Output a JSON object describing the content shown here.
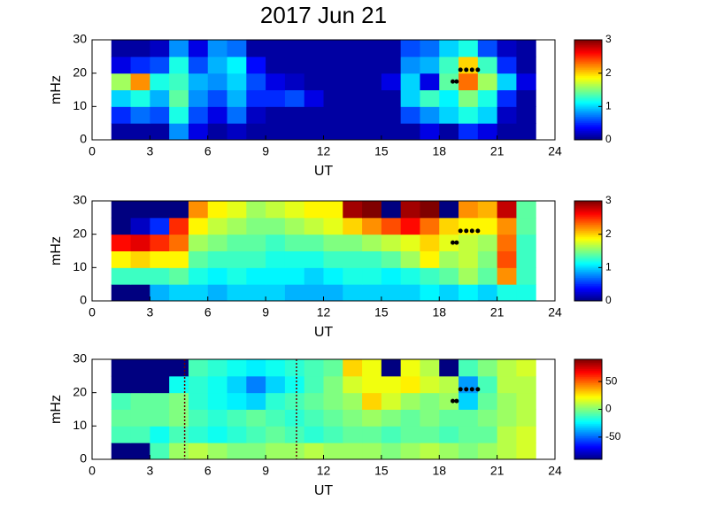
{
  "chart_data": [
    {
      "type": "heatmap",
      "title": "2017 Jun 21",
      "xlabel": "UT",
      "ylabel": "mHz",
      "x": [
        1,
        2,
        3,
        4,
        5,
        6,
        7,
        8,
        9,
        10,
        11,
        12,
        13,
        14,
        15,
        16,
        17,
        18,
        19,
        20,
        21,
        22,
        23
      ],
      "y": [
        0,
        5,
        10,
        15,
        20,
        25,
        30
      ],
      "z": [
        [
          0.1,
          0.1,
          0.1,
          0.8,
          0.3,
          0.1,
          0.2,
          0.1,
          0.1,
          0.1,
          0.1,
          0.1,
          0.1,
          0.1,
          0.1,
          0.1,
          0.3,
          0.1,
          0.5,
          0.3,
          0.1,
          0.1
        ],
        [
          0.5,
          0.7,
          0.6,
          1.2,
          0.6,
          0.3,
          0.7,
          0.2,
          0.1,
          0.1,
          0.1,
          0.1,
          0.1,
          0.1,
          0.1,
          0.6,
          0.8,
          1.0,
          1.2,
          1.0,
          0.2,
          0.1
        ],
        [
          1.0,
          1.2,
          0.9,
          1.4,
          0.8,
          0.6,
          0.9,
          0.5,
          0.5,
          0.6,
          0.3,
          0.1,
          0.1,
          0.1,
          0.1,
          1.0,
          1.3,
          1.1,
          1.5,
          1.2,
          0.5,
          0.1
        ],
        [
          1.6,
          2.2,
          1.2,
          1.3,
          0.9,
          0.8,
          1.0,
          0.6,
          0.3,
          0.2,
          0.1,
          0.1,
          0.1,
          0.1,
          0.3,
          1.0,
          0.3,
          1.4,
          2.3,
          1.6,
          1.0,
          0.3
        ],
        [
          0.3,
          0.5,
          0.6,
          1.2,
          0.6,
          0.9,
          1.1,
          0.4,
          0.1,
          0.1,
          0.1,
          0.1,
          0.1,
          0.1,
          0.1,
          0.8,
          0.9,
          1.3,
          2.0,
          1.3,
          0.5,
          0.1
        ],
        [
          0.1,
          0.1,
          0.2,
          0.8,
          0.3,
          0.8,
          0.7,
          0.1,
          0.1,
          0.1,
          0.1,
          0.1,
          0.1,
          0.1,
          0.1,
          0.6,
          0.7,
          1.0,
          1.2,
          0.6,
          0.2,
          0.1
        ]
      ],
      "markers": {
        "x": [
          18.7,
          18.9,
          19.1,
          19.4,
          19.7,
          20.0
        ],
        "y": [
          17.5,
          17.5,
          21,
          21,
          21,
          21
        ],
        "color": "#000000"
      },
      "xlim": [
        0,
        24
      ],
      "xticks": [
        0,
        3,
        6,
        9,
        12,
        15,
        18,
        21,
        24
      ],
      "ylim": [
        0,
        30
      ],
      "yticks": [
        0,
        10,
        20,
        30
      ],
      "clim": [
        0,
        3
      ],
      "cticks": [
        0,
        1,
        2,
        3
      ]
    },
    {
      "type": "heatmap",
      "xlabel": "UT",
      "ylabel": "mHz",
      "x": [
        1,
        2,
        3,
        4,
        5,
        6,
        7,
        8,
        9,
        10,
        11,
        12,
        13,
        14,
        15,
        16,
        17,
        18,
        19,
        20,
        21,
        22,
        23
      ],
      "y": [
        0,
        5,
        10,
        15,
        20,
        25,
        30
      ],
      "z": [
        [
          0,
          0,
          0.9,
          1.0,
          1.0,
          0.9,
          1.0,
          1.0,
          1.0,
          0.9,
          0.9,
          0.9,
          1.0,
          1.0,
          1.0,
          1.0,
          1.1,
          1.0,
          1.1,
          1.0,
          1.2,
          1.2
        ],
        [
          1.3,
          1.3,
          1.3,
          1.4,
          1.2,
          1.1,
          1.2,
          1.1,
          1.1,
          1.1,
          1.0,
          1.1,
          1.2,
          1.2,
          1.1,
          1.2,
          1.3,
          1.4,
          1.6,
          1.4,
          2.2,
          1.3
        ],
        [
          1.9,
          2.0,
          1.9,
          1.9,
          1.4,
          1.3,
          1.3,
          1.3,
          1.2,
          1.2,
          1.2,
          1.3,
          1.3,
          1.3,
          1.4,
          1.6,
          1.9,
          1.6,
          1.7,
          1.5,
          2.4,
          1.3
        ],
        [
          2.6,
          2.7,
          2.5,
          2.3,
          1.6,
          1.5,
          1.4,
          1.4,
          1.3,
          1.4,
          1.4,
          1.5,
          1.5,
          1.6,
          1.7,
          1.8,
          2.0,
          1.8,
          1.7,
          1.6,
          2.3,
          1.3
        ],
        [
          0,
          0.2,
          0.5,
          2.5,
          1.9,
          1.7,
          1.6,
          1.5,
          1.5,
          1.6,
          1.7,
          1.8,
          2.0,
          2.2,
          2.4,
          2.6,
          2.3,
          2.0,
          1.9,
          1.9,
          2.2,
          1.4
        ],
        [
          0,
          0,
          0,
          0,
          2.2,
          1.9,
          1.8,
          1.6,
          1.7,
          1.8,
          1.9,
          1.9,
          2.9,
          3.0,
          0,
          2.9,
          3.0,
          0,
          2.2,
          2.1,
          2.8,
          1.4
        ]
      ],
      "markers": {
        "x": [
          18.7,
          18.9,
          19.1,
          19.4,
          19.7,
          20.0
        ],
        "y": [
          17.5,
          17.5,
          21,
          21,
          21,
          21
        ],
        "color": "#000000"
      },
      "xlim": [
        0,
        24
      ],
      "xticks": [
        0,
        3,
        6,
        9,
        12,
        15,
        18,
        21,
        24
      ],
      "ylim": [
        0,
        30
      ],
      "yticks": [
        0,
        10,
        20,
        30
      ],
      "clim": [
        0,
        3
      ],
      "cticks": [
        0,
        1,
        2,
        3
      ]
    },
    {
      "type": "heatmap",
      "xlabel": "UT",
      "ylabel": "mHz",
      "x": [
        1,
        2,
        3,
        4,
        5,
        6,
        7,
        8,
        9,
        10,
        11,
        12,
        13,
        14,
        15,
        16,
        17,
        18,
        19,
        20,
        21,
        22,
        23
      ],
      "y": [
        0,
        5,
        10,
        15,
        20,
        25,
        30
      ],
      "z": [
        [
          -90,
          -90,
          -10,
          5,
          10,
          5,
          0,
          0,
          5,
          5,
          10,
          5,
          5,
          5,
          0,
          5,
          10,
          5,
          0,
          5,
          10,
          15
        ],
        [
          -10,
          -10,
          -20,
          -10,
          -15,
          -20,
          -15,
          -10,
          -5,
          -10,
          -15,
          -10,
          -5,
          -5,
          -10,
          -5,
          -5,
          -10,
          -5,
          -5,
          10,
          15
        ],
        [
          -5,
          -5,
          -5,
          0,
          -10,
          -15,
          -10,
          -5,
          -10,
          -15,
          -10,
          -5,
          0,
          5,
          0,
          -5,
          0,
          -5,
          -5,
          0,
          5,
          10
        ],
        [
          -10,
          -5,
          -5,
          0,
          -15,
          -20,
          -25,
          -30,
          -15,
          -10,
          -5,
          0,
          5,
          30,
          15,
          5,
          0,
          5,
          -30,
          -5,
          5,
          10
        ],
        [
          -90,
          -90,
          -90,
          -20,
          -15,
          -20,
          -30,
          -45,
          -30,
          -20,
          -10,
          0,
          15,
          20,
          20,
          25,
          15,
          10,
          -40,
          -10,
          10,
          10
        ],
        [
          -90,
          -90,
          -90,
          -90,
          -10,
          -15,
          -20,
          -25,
          -20,
          -15,
          -10,
          -5,
          30,
          20,
          -90,
          20,
          10,
          -90,
          -10,
          0,
          10,
          15
        ]
      ],
      "markers": {
        "x": [
          18.7,
          18.9,
          19.1,
          19.4,
          19.7,
          20.0
        ],
        "y": [
          17.5,
          17.5,
          21,
          21,
          21,
          21
        ],
        "color": "#000000"
      },
      "vlines": [
        4.8,
        10.6
      ],
      "xlim": [
        0,
        24
      ],
      "xticks": [
        0,
        3,
        6,
        9,
        12,
        15,
        18,
        21,
        24
      ],
      "ylim": [
        0,
        30
      ],
      "yticks": [
        0,
        10,
        20,
        30
      ],
      "clim": [
        -90,
        90
      ],
      "cticks": [
        -50,
        0,
        50
      ]
    }
  ]
}
